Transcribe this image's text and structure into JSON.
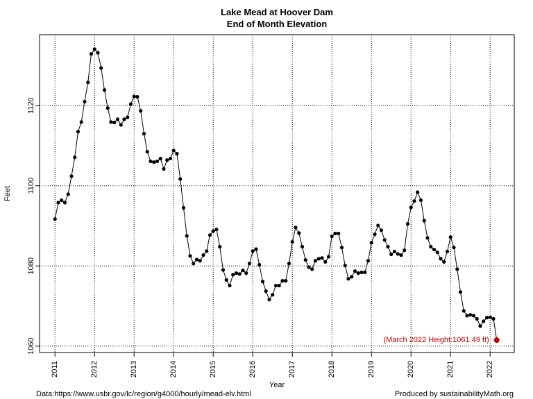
{
  "chart_data": {
    "type": "line",
    "title": "Lake Mead at Hoover Dam",
    "subtitle": "End of Month Elevation",
    "x_label": "Year",
    "y_label": "Feet",
    "source": "Data:https://www.usbr.gov/lc/region/g4000/hourly/mead-elv.html",
    "credit": "Produced by sustainabilityMath.org",
    "annotation": {
      "text": "(March 2022 Height:1061.49 ft)",
      "color": "#c00000"
    },
    "x": [
      2011,
      2011.0833,
      2011.1667,
      2011.25,
      2011.3333,
      2011.4167,
      2011.5,
      2011.5833,
      2011.6667,
      2011.75,
      2011.8333,
      2011.9167,
      2012,
      2012.0833,
      2012.1667,
      2012.25,
      2012.3333,
      2012.4167,
      2012.5,
      2012.5833,
      2012.6667,
      2012.75,
      2012.8333,
      2012.9167,
      2013,
      2013.0833,
      2013.1667,
      2013.25,
      2013.3333,
      2013.4167,
      2013.5,
      2013.5833,
      2013.6667,
      2013.75,
      2013.8333,
      2013.9167,
      2014,
      2014.0833,
      2014.1667,
      2014.25,
      2014.3333,
      2014.4167,
      2014.5,
      2014.5833,
      2014.6667,
      2014.75,
      2014.8333,
      2014.9167,
      2015,
      2015.0833,
      2015.1667,
      2015.25,
      2015.3333,
      2015.4167,
      2015.5,
      2015.5833,
      2015.6667,
      2015.75,
      2015.8333,
      2015.9167,
      2016,
      2016.0833,
      2016.1667,
      2016.25,
      2016.3333,
      2016.4167,
      2016.5,
      2016.5833,
      2016.6667,
      2016.75,
      2016.8333,
      2016.9167,
      2017,
      2017.0833,
      2017.1667,
      2017.25,
      2017.3333,
      2017.4167,
      2017.5,
      2017.5833,
      2017.6667,
      2017.75,
      2017.8333,
      2017.9167,
      2018,
      2018.0833,
      2018.1667,
      2018.25,
      2018.3333,
      2018.4167,
      2018.5,
      2018.5833,
      2018.6667,
      2018.75,
      2018.8333,
      2018.9167,
      2019,
      2019.0833,
      2019.1667,
      2019.25,
      2019.3333,
      2019.4167,
      2019.5,
      2019.5833,
      2019.6667,
      2019.75,
      2019.8333,
      2019.9167,
      2020,
      2020.0833,
      2020.1667,
      2020.25,
      2020.3333,
      2020.4167,
      2020.5,
      2020.5833,
      2020.6667,
      2020.75,
      2020.8333,
      2020.9167,
      2021,
      2021.0833,
      2021.1667,
      2021.25,
      2021.3333,
      2021.4167,
      2021.5,
      2021.5833,
      2021.6667,
      2021.75,
      2021.8333,
      2021.9167,
      2022,
      2022.0833,
      2022.1667
    ],
    "series": [
      {
        "color": "#000000",
        "values": [
          1091.7,
          1095.8,
          1096.4,
          1095.8,
          1097.9,
          1102.4,
          1107.1,
          1113.5,
          1115.9,
          1121.0,
          1125.8,
          1132.9,
          1134.1,
          1133.2,
          1129.4,
          1123.9,
          1119.4,
          1115.9,
          1115.8,
          1116.6,
          1115.2,
          1116.6,
          1117.1,
          1120.4,
          1122.3,
          1122.2,
          1118.7,
          1113.0,
          1108.5,
          1106.1,
          1105.9,
          1106.1,
          1106.8,
          1104.2,
          1106.4,
          1106.8,
          1108.8,
          1108.0,
          1101.7,
          1094.5,
          1087.5,
          1082.5,
          1080.6,
          1081.6,
          1081.3,
          1082.7,
          1083.7,
          1087.7,
          1088.7,
          1089.1,
          1084.8,
          1079.0,
          1076.5,
          1075.1,
          1077.8,
          1078.2,
          1078.0,
          1078.9,
          1078.2,
          1080.6,
          1083.7,
          1084.2,
          1080.3,
          1076.1,
          1073.7,
          1071.6,
          1072.8,
          1075.1,
          1075.1,
          1076.3,
          1076.3,
          1080.6,
          1086.0,
          1089.6,
          1088.2,
          1084.8,
          1081.5,
          1079.7,
          1079.2,
          1081.3,
          1081.8,
          1082.0,
          1081.0,
          1082.3,
          1087.4,
          1088.1,
          1088.1,
          1084.6,
          1080.1,
          1076.8,
          1077.3,
          1078.7,
          1078.2,
          1078.4,
          1078.4,
          1081.3,
          1085.8,
          1087.9,
          1090.1,
          1088.9,
          1086.5,
          1084.8,
          1082.9,
          1083.6,
          1083.0,
          1082.7,
          1083.9,
          1090.5,
          1094.6,
          1096.2,
          1098.4,
          1096.4,
          1091.3,
          1087.0,
          1084.8,
          1084.1,
          1083.4,
          1081.8,
          1081.0,
          1083.6,
          1087.2,
          1084.6,
          1079.2,
          1073.5,
          1068.8,
          1067.6,
          1067.8,
          1067.6,
          1066.8,
          1065.0,
          1066.2,
          1067.1,
          1067.2,
          1066.8,
          1061.49
        ]
      }
    ],
    "xlim": [
      2010.61,
      2022.61
    ],
    "ylim": [
      1058.4,
      1137.7
    ],
    "xticks": [
      2011,
      2012,
      2013,
      2014,
      2015,
      2016,
      2017,
      2018,
      2019,
      2020,
      2021,
      2022
    ],
    "yticks": [
      1060,
      1080,
      1100,
      1120
    ],
    "grid": true
  }
}
